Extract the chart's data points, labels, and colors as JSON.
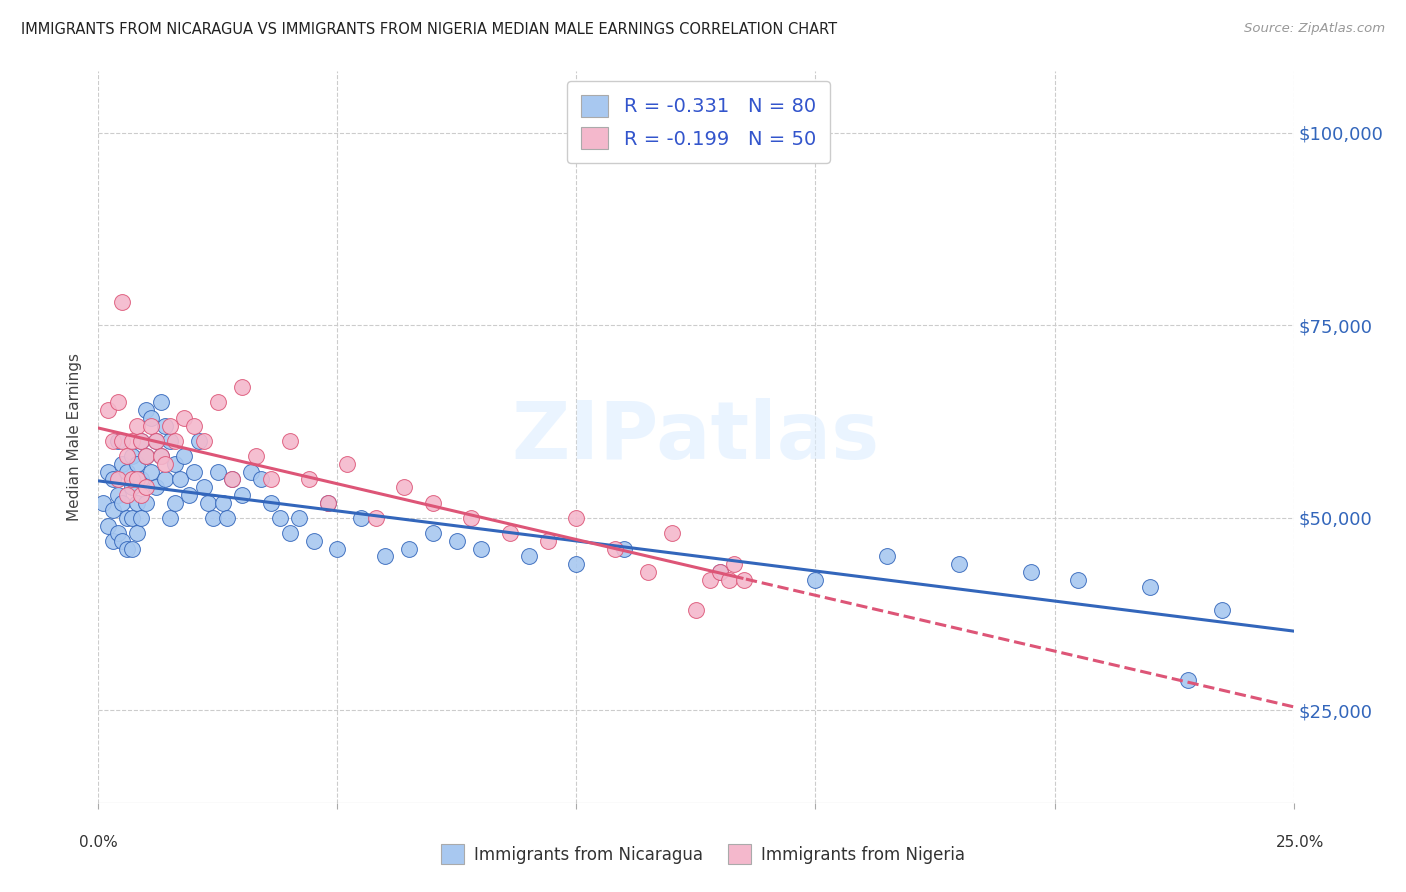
{
  "title": "IMMIGRANTS FROM NICARAGUA VS IMMIGRANTS FROM NIGERIA MEDIAN MALE EARNINGS CORRELATION CHART",
  "source": "Source: ZipAtlas.com",
  "ylabel": "Median Male Earnings",
  "ytick_labels": [
    "$25,000",
    "$50,000",
    "$75,000",
    "$100,000"
  ],
  "ytick_values": [
    25000,
    50000,
    75000,
    100000
  ],
  "ylim": [
    13000,
    108000
  ],
  "xlim": [
    0.0,
    0.25
  ],
  "r_nicaragua": -0.331,
  "n_nicaragua": 80,
  "r_nigeria": -0.199,
  "n_nigeria": 50,
  "color_nicaragua": "#a8c8f0",
  "color_nigeria": "#f4b8cc",
  "line_color_nicaragua": "#3366bb",
  "line_color_nigeria": "#dd5577",
  "legend_text_color": "#3355cc",
  "watermark": "ZIPatlas",
  "nicaragua_x": [
    0.001,
    0.002,
    0.002,
    0.003,
    0.003,
    0.003,
    0.004,
    0.004,
    0.004,
    0.005,
    0.005,
    0.005,
    0.006,
    0.006,
    0.006,
    0.007,
    0.007,
    0.007,
    0.007,
    0.008,
    0.008,
    0.008,
    0.009,
    0.009,
    0.009,
    0.01,
    0.01,
    0.01,
    0.011,
    0.011,
    0.012,
    0.012,
    0.013,
    0.013,
    0.014,
    0.014,
    0.015,
    0.015,
    0.016,
    0.016,
    0.017,
    0.018,
    0.019,
    0.02,
    0.021,
    0.022,
    0.023,
    0.024,
    0.025,
    0.026,
    0.027,
    0.028,
    0.03,
    0.032,
    0.034,
    0.036,
    0.038,
    0.04,
    0.042,
    0.045,
    0.048,
    0.05,
    0.055,
    0.06,
    0.065,
    0.07,
    0.075,
    0.08,
    0.09,
    0.1,
    0.11,
    0.13,
    0.15,
    0.165,
    0.18,
    0.195,
    0.205,
    0.22,
    0.228,
    0.235
  ],
  "nicaragua_y": [
    52000,
    56000,
    49000,
    55000,
    51000,
    47000,
    60000,
    53000,
    48000,
    57000,
    52000,
    47000,
    56000,
    50000,
    46000,
    58000,
    54000,
    50000,
    46000,
    57000,
    52000,
    48000,
    60000,
    55000,
    50000,
    64000,
    58000,
    52000,
    63000,
    56000,
    60000,
    54000,
    65000,
    58000,
    62000,
    55000,
    60000,
    50000,
    57000,
    52000,
    55000,
    58000,
    53000,
    56000,
    60000,
    54000,
    52000,
    50000,
    56000,
    52000,
    50000,
    55000,
    53000,
    56000,
    55000,
    52000,
    50000,
    48000,
    50000,
    47000,
    52000,
    46000,
    50000,
    45000,
    46000,
    48000,
    47000,
    46000,
    45000,
    44000,
    46000,
    43000,
    42000,
    45000,
    44000,
    43000,
    42000,
    41000,
    29000,
    38000
  ],
  "nigeria_x": [
    0.002,
    0.003,
    0.004,
    0.004,
    0.005,
    0.005,
    0.006,
    0.006,
    0.007,
    0.007,
    0.008,
    0.008,
    0.009,
    0.009,
    0.01,
    0.01,
    0.011,
    0.012,
    0.013,
    0.014,
    0.015,
    0.016,
    0.018,
    0.02,
    0.022,
    0.025,
    0.028,
    0.03,
    0.033,
    0.036,
    0.04,
    0.044,
    0.048,
    0.052,
    0.058,
    0.064,
    0.07,
    0.078,
    0.086,
    0.094,
    0.1,
    0.108,
    0.115,
    0.12,
    0.125,
    0.128,
    0.13,
    0.132,
    0.133,
    0.135
  ],
  "nigeria_y": [
    64000,
    60000,
    65000,
    55000,
    78000,
    60000,
    58000,
    53000,
    60000,
    55000,
    62000,
    55000,
    60000,
    53000,
    58000,
    54000,
    62000,
    60000,
    58000,
    57000,
    62000,
    60000,
    63000,
    62000,
    60000,
    65000,
    55000,
    67000,
    58000,
    55000,
    60000,
    55000,
    52000,
    57000,
    50000,
    54000,
    52000,
    50000,
    48000,
    47000,
    50000,
    46000,
    43000,
    48000,
    38000,
    42000,
    43000,
    42000,
    44000,
    42000
  ],
  "xtick_vals": [
    0.0,
    0.05,
    0.1,
    0.15,
    0.2,
    0.25
  ]
}
